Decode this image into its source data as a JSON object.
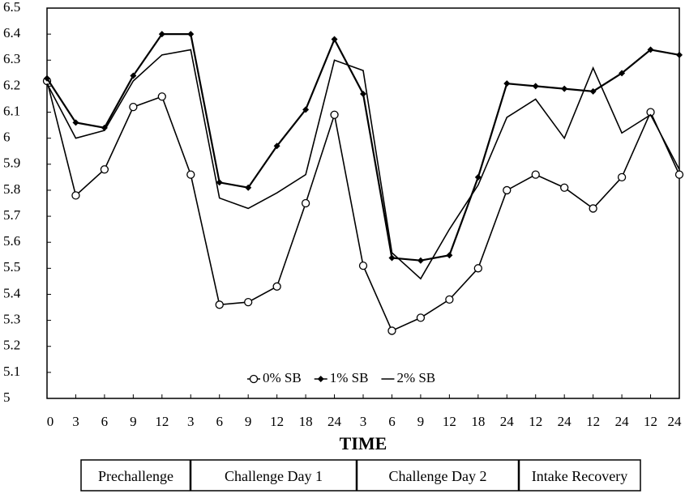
{
  "chart_data": {
    "type": "line",
    "x_label": "TIME",
    "categories": [
      "0",
      "3",
      "6",
      "9",
      "12",
      "3",
      "6",
      "9",
      "12",
      "18",
      "24",
      "3",
      "6",
      "9",
      "12",
      "18",
      "24",
      "12",
      "24",
      "12",
      "24",
      "12",
      "24"
    ],
    "series": [
      {
        "name": "0% SB",
        "color": "#000000",
        "marker": "circle",
        "values": [
          6.22,
          5.78,
          5.88,
          6.12,
          6.16,
          5.86,
          5.36,
          5.37,
          5.43,
          5.75,
          6.09,
          5.51,
          5.26,
          5.31,
          5.38,
          5.5,
          5.8,
          5.86,
          5.81,
          5.73,
          5.85,
          6.1,
          5.86
        ]
      },
      {
        "name": "1% SB",
        "color": "#000000",
        "marker": "diamond",
        "values": [
          6.23,
          6.06,
          6.04,
          6.24,
          6.4,
          6.4,
          5.83,
          5.81,
          5.97,
          6.11,
          6.38,
          6.17,
          5.54,
          5.53,
          5.55,
          5.85,
          6.21,
          6.2,
          6.19,
          6.18,
          6.25,
          6.34,
          6.32
        ]
      },
      {
        "name": "2% SB",
        "color": "#000000",
        "marker": "none",
        "values": [
          6.21,
          6.0,
          6.03,
          6.22,
          6.32,
          6.34,
          5.77,
          5.73,
          5.79,
          5.86,
          6.3,
          6.26,
          5.56,
          5.46,
          5.65,
          5.82,
          6.08,
          6.15,
          6.0,
          6.27,
          6.02,
          6.09,
          5.88
        ]
      }
    ],
    "ylim": [
      5,
      6.5
    ],
    "yticks": [
      5,
      5.1,
      5.2,
      5.3,
      5.4,
      5.5,
      5.6,
      5.7,
      5.8,
      5.9,
      6,
      6.1,
      6.2,
      6.3,
      6.4,
      6.5
    ],
    "legend": "bottom",
    "phases": [
      "Prechallenge",
      "Challenge Day 1",
      "Challenge Day 2",
      "Intake Recovery"
    ]
  }
}
